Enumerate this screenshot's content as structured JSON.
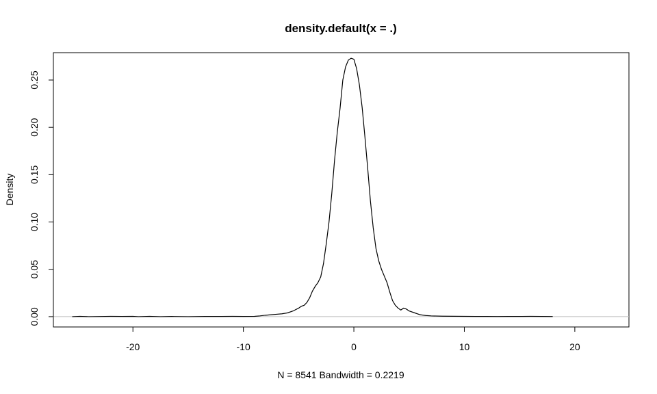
{
  "chart_data": {
    "type": "line",
    "title": "density.default(x = .)",
    "xlabel": "N = 8541   Bandwidth = 0.2219",
    "ylabel": "Density",
    "xlim": [
      -27.2,
      24.9
    ],
    "ylim": [
      -0.0109,
      0.2789
    ],
    "x_ticks": [
      -20,
      -10,
      0,
      10,
      20
    ],
    "x_tick_labels": [
      "-20",
      "-10",
      "0",
      "10",
      "20"
    ],
    "y_ticks": [
      0.0,
      0.05,
      0.1,
      0.15,
      0.2,
      0.25
    ],
    "y_tick_labels": [
      "0.00",
      "0.05",
      "0.10",
      "0.15",
      "0.20",
      "0.25"
    ],
    "grid": false,
    "baseline": 0,
    "colors": {
      "line": "#000000",
      "baseline": "#bebebe",
      "axes": "#000000"
    },
    "series": [
      {
        "x": [
          -25.5,
          -24.8,
          -24.0,
          -22.0,
          -21.0,
          -20.0,
          -19.5,
          -18.5,
          -17.5,
          -16.5,
          -15.0,
          -13.5,
          -12.0,
          -11.0,
          -10.0,
          -9.0,
          -8.5,
          -8.0,
          -7.5,
          -7.0,
          -6.5,
          -6.0,
          -5.5,
          -5.0,
          -4.75,
          -4.5,
          -4.25,
          -4.0,
          -3.75,
          -3.5,
          -3.25,
          -3.0,
          -2.75,
          -2.5,
          -2.25,
          -2.0,
          -1.75,
          -1.5,
          -1.25,
          -1.0,
          -0.75,
          -0.5,
          -0.25,
          0.0,
          0.25,
          0.5,
          0.75,
          1.0,
          1.25,
          1.5,
          1.75,
          2.0,
          2.25,
          2.5,
          2.75,
          3.0,
          3.25,
          3.5,
          3.75,
          4.0,
          4.25,
          4.5,
          4.75,
          5.0,
          5.5,
          6.0,
          6.5,
          7.0,
          8.0,
          9.0,
          10.0,
          11.0,
          12.0,
          13.0,
          14.0,
          15.0,
          16.0,
          17.0,
          18.0
        ],
        "y": [
          0.0,
          0.0003,
          0.0,
          0.0003,
          0.0002,
          0.0003,
          0.0,
          0.0003,
          0.0,
          0.0002,
          0.0,
          0.0002,
          0.0002,
          0.0003,
          0.0002,
          0.0003,
          0.0008,
          0.0015,
          0.002,
          0.0025,
          0.003,
          0.004,
          0.006,
          0.009,
          0.011,
          0.012,
          0.015,
          0.02,
          0.027,
          0.032,
          0.036,
          0.042,
          0.056,
          0.077,
          0.1,
          0.13,
          0.165,
          0.195,
          0.22,
          0.25,
          0.264,
          0.271,
          0.273,
          0.272,
          0.262,
          0.245,
          0.221,
          0.19,
          0.157,
          0.122,
          0.094,
          0.072,
          0.059,
          0.05,
          0.043,
          0.036,
          0.026,
          0.017,
          0.012,
          0.009,
          0.007,
          0.009,
          0.008,
          0.006,
          0.004,
          0.002,
          0.0012,
          0.0008,
          0.0005,
          0.0004,
          0.0003,
          0.0002,
          0.0002,
          0.0001,
          0.0002,
          0.0002,
          0.0003,
          0.0002,
          0.0001
        ]
      }
    ]
  }
}
